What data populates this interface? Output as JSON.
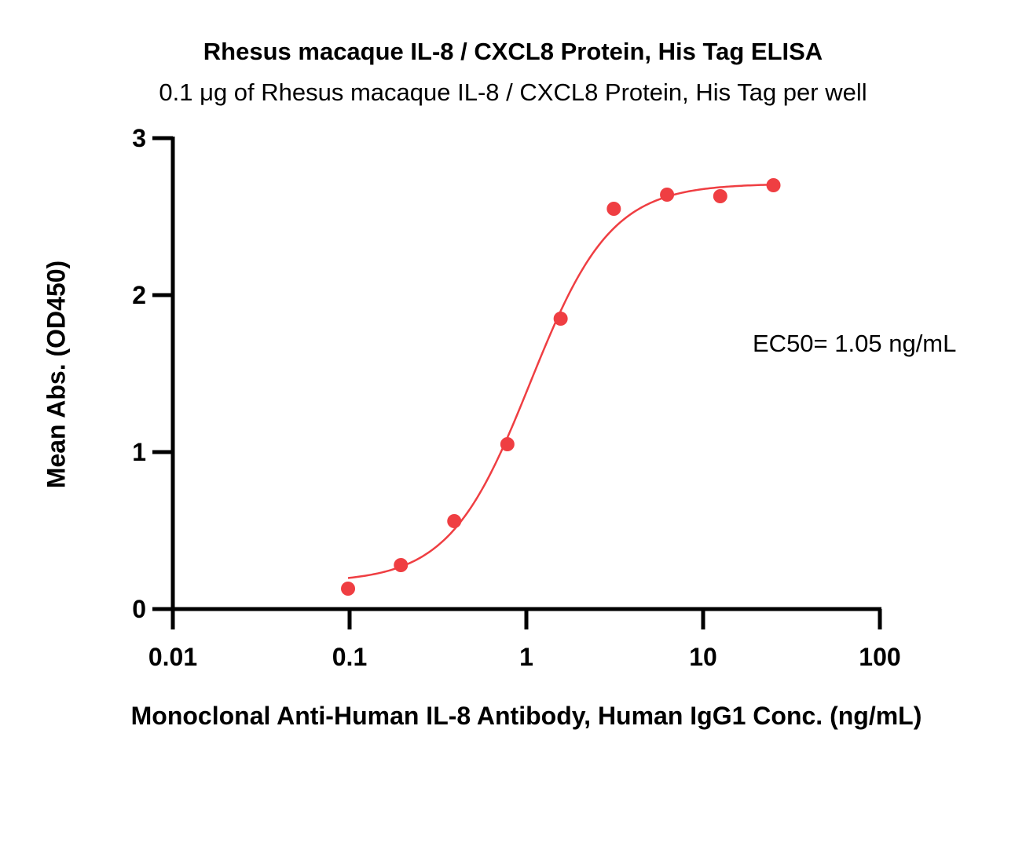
{
  "chart_data": {
    "type": "scatter",
    "title": "Rhesus macaque IL-8 / CXCL8 Protein, His Tag ELISA",
    "subtitle": "0.1 μg of Rhesus macaque IL-8 / CXCL8 Protein, His Tag per well",
    "xlabel": "Monoclonal Anti-Human IL-8 Antibody, Human IgG1 Conc. (ng/mL)",
    "ylabel": "Mean Abs. (OD450)",
    "x_scale": "log",
    "xlim": [
      0.01,
      100
    ],
    "ylim": [
      0,
      3
    ],
    "x_ticks": [
      "0.01",
      "0.1",
      "1",
      "10",
      "100"
    ],
    "y_ticks": [
      "0",
      "1",
      "2",
      "3"
    ],
    "grid": false,
    "color": "#ef3e42",
    "points": [
      {
        "x": 0.098,
        "y": 0.13
      },
      {
        "x": 0.195,
        "y": 0.28
      },
      {
        "x": 0.391,
        "y": 0.56
      },
      {
        "x": 0.781,
        "y": 1.05
      },
      {
        "x": 1.563,
        "y": 1.85
      },
      {
        "x": 3.125,
        "y": 2.55
      },
      {
        "x": 6.25,
        "y": 2.64
      },
      {
        "x": 12.5,
        "y": 2.63
      },
      {
        "x": 25,
        "y": 2.7
      }
    ],
    "fit": {
      "model": "4PL",
      "bottom": 0.17,
      "top": 2.71,
      "ec50": 1.05,
      "hill": 1.9,
      "x_range": [
        0.098,
        25
      ]
    },
    "annotation": "EC50= 1.05 ng/mL"
  }
}
